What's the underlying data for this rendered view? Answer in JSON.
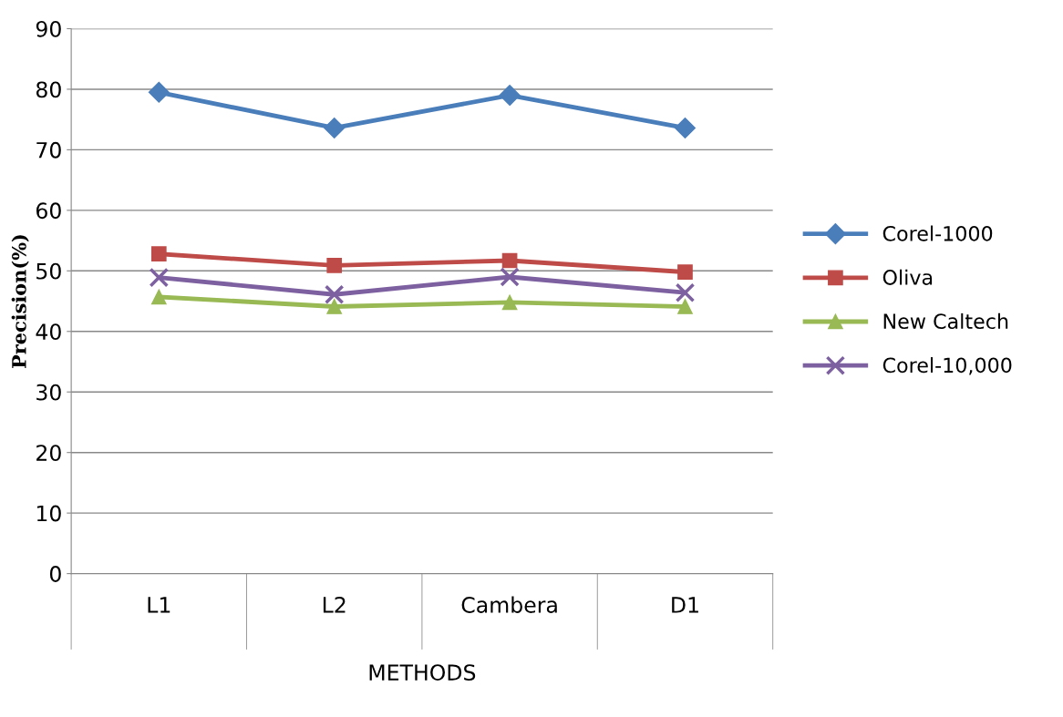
{
  "chart_data": {
    "type": "line",
    "xlabel": "METHODS",
    "ylabel": "Precision(%)",
    "categories": [
      "L1",
      "L2",
      "Cambera",
      "D1"
    ],
    "series": [
      {
        "name": "Corel-1000",
        "color": "#4a7ebb",
        "marker": "diamond",
        "values": [
          79.5,
          73.6,
          79.0,
          73.6
        ]
      },
      {
        "name": "Oliva",
        "color": "#be4b48",
        "marker": "square",
        "values": [
          52.8,
          50.9,
          51.7,
          49.8
        ]
      },
      {
        "name": "New Caltech",
        "color": "#98b954",
        "marker": "triangle",
        "values": [
          45.7,
          44.1,
          44.8,
          44.1
        ]
      },
      {
        "name": "Corel-10,000",
        "color": "#7d60a0",
        "marker": "cross",
        "values": [
          48.9,
          46.1,
          49.0,
          46.4
        ]
      }
    ],
    "ylim": [
      0,
      90
    ],
    "yticks": [
      0,
      10,
      20,
      30,
      40,
      50,
      60,
      70,
      80,
      90
    ],
    "grid": "y",
    "legend": "right",
    "line_style": "solid"
  }
}
